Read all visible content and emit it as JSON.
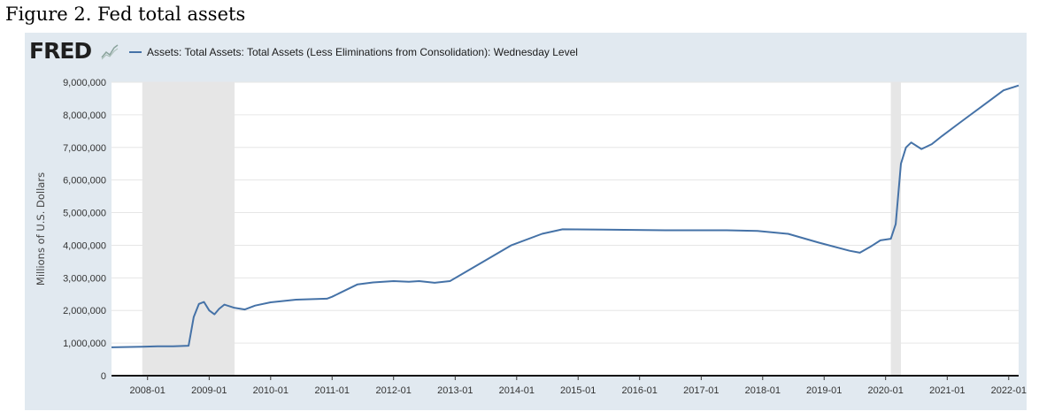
{
  "caption": "Figure 2. Fed total assets",
  "logo": {
    "text": "FRED",
    "icon": "fred-chart-icon"
  },
  "chart_data": {
    "type": "line",
    "legend": "Assets: Total Assets: Total Assets (Less Eliminations from Consolidation): Wednesday Level",
    "legend_position": "top-left",
    "title": "",
    "xlabel": "",
    "ylabel": "Millions of U.S. Dollars",
    "x_ticks": [
      "2008-01",
      "2009-01",
      "2010-01",
      "2011-01",
      "2012-01",
      "2013-01",
      "2014-01",
      "2015-01",
      "2016-01",
      "2017-01",
      "2018-01",
      "2019-01",
      "2020-01",
      "2021-01",
      "2022-01"
    ],
    "y_ticks": [
      "0",
      "1,000,000",
      "2,000,000",
      "3,000,000",
      "4,000,000",
      "5,000,000",
      "6,000,000",
      "7,000,000",
      "8,000,000",
      "9,000,000"
    ],
    "ylim": [
      0,
      9000000
    ],
    "xlim": [
      "2007-06-01",
      "2022-03-01"
    ],
    "grid": true,
    "recessions": [
      {
        "start": "2007-12-01",
        "end": "2009-06-01"
      },
      {
        "start": "2020-02-01",
        "end": "2020-04-01"
      }
    ],
    "series": [
      {
        "name": "Assets: Total Assets: Total Assets (Less Eliminations from Consolidation): Wednesday Level",
        "color": "#4572a7",
        "points": [
          [
            "2007-06-01",
            870000
          ],
          [
            "2007-12-01",
            890000
          ],
          [
            "2008-03-01",
            900000
          ],
          [
            "2008-06-01",
            900000
          ],
          [
            "2008-09-01",
            920000
          ],
          [
            "2008-10-01",
            1800000
          ],
          [
            "2008-11-01",
            2200000
          ],
          [
            "2008-12-01",
            2260000
          ],
          [
            "2009-01-01",
            2000000
          ],
          [
            "2009-02-01",
            1880000
          ],
          [
            "2009-03-01",
            2050000
          ],
          [
            "2009-04-01",
            2180000
          ],
          [
            "2009-06-01",
            2080000
          ],
          [
            "2009-08-01",
            2030000
          ],
          [
            "2009-10-01",
            2150000
          ],
          [
            "2010-01-01",
            2250000
          ],
          [
            "2010-06-01",
            2330000
          ],
          [
            "2010-12-01",
            2360000
          ],
          [
            "2011-01-01",
            2420000
          ],
          [
            "2011-06-01",
            2800000
          ],
          [
            "2011-09-01",
            2860000
          ],
          [
            "2012-01-01",
            2900000
          ],
          [
            "2012-04-01",
            2880000
          ],
          [
            "2012-06-01",
            2900000
          ],
          [
            "2012-09-01",
            2850000
          ],
          [
            "2012-12-01",
            2900000
          ],
          [
            "2013-06-01",
            3450000
          ],
          [
            "2013-12-01",
            4000000
          ],
          [
            "2014-06-01",
            4350000
          ],
          [
            "2014-10-01",
            4490000
          ],
          [
            "2015-06-01",
            4480000
          ],
          [
            "2016-06-01",
            4460000
          ],
          [
            "2017-06-01",
            4460000
          ],
          [
            "2017-12-01",
            4440000
          ],
          [
            "2018-06-01",
            4350000
          ],
          [
            "2018-12-01",
            4080000
          ],
          [
            "2019-06-01",
            3830000
          ],
          [
            "2019-08-01",
            3770000
          ],
          [
            "2019-10-01",
            3950000
          ],
          [
            "2019-12-01",
            4150000
          ],
          [
            "2020-02-01",
            4200000
          ],
          [
            "2020-03-01",
            4650000
          ],
          [
            "2020-04-01",
            6500000
          ],
          [
            "2020-05-01",
            7000000
          ],
          [
            "2020-06-01",
            7150000
          ],
          [
            "2020-08-01",
            6950000
          ],
          [
            "2020-10-01",
            7100000
          ],
          [
            "2020-12-01",
            7350000
          ],
          [
            "2021-03-01",
            7700000
          ],
          [
            "2021-06-01",
            8050000
          ],
          [
            "2021-09-01",
            8400000
          ],
          [
            "2021-12-01",
            8750000
          ],
          [
            "2022-03-01",
            8900000
          ]
        ]
      }
    ]
  },
  "colors": {
    "panel_background": "#e1e9f0",
    "plot_background": "#ffffff",
    "recession_shade": "#e6e6e6",
    "gridline": "#e6e6e6",
    "line": "#4572a7"
  }
}
